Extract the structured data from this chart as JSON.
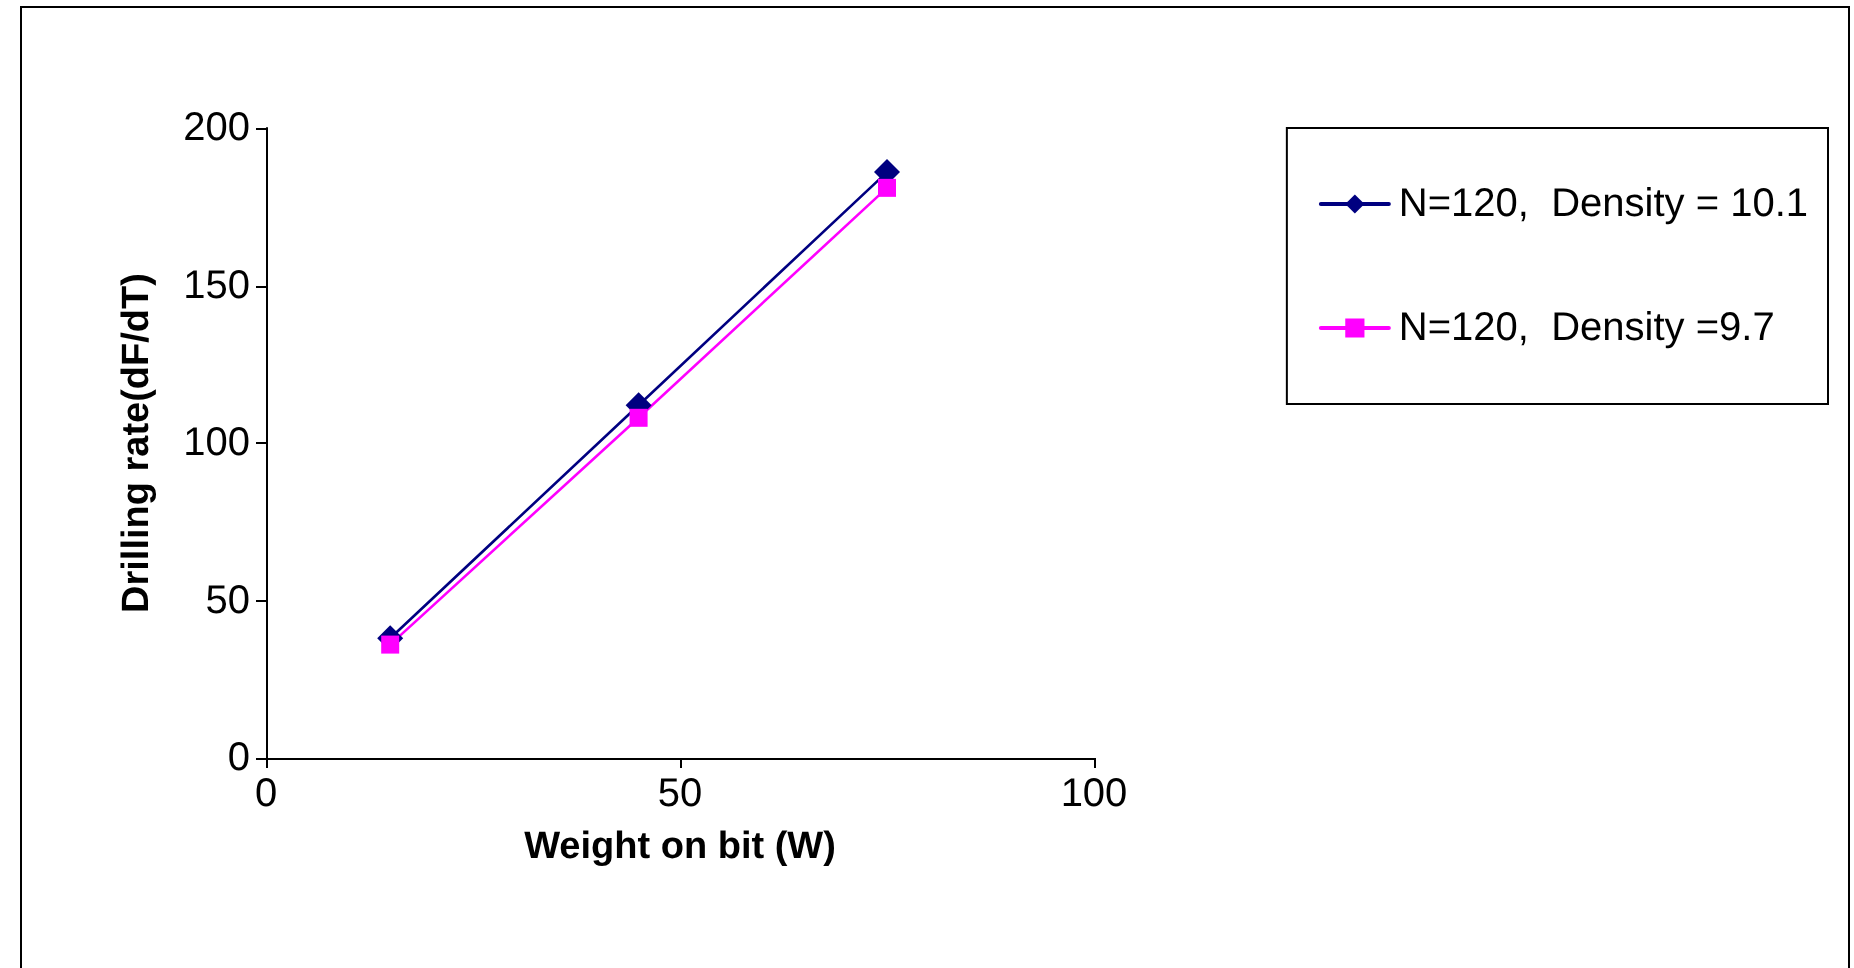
{
  "chart_data": {
    "type": "line",
    "xlabel": "Weight on bit (W)",
    "ylabel": "Drilling rate(dF/dT)",
    "xlim": [
      0,
      100
    ],
    "xticks": [
      0,
      50,
      100
    ],
    "ylim": [
      0,
      200
    ],
    "yticks": [
      0,
      50,
      100,
      150,
      200
    ],
    "grid": false,
    "legend": "top right",
    "line_style": "solid",
    "series": [
      {
        "name": "N=120,  Density = 10.1",
        "color": "#000080",
        "marker": "diamond",
        "x": [
          15,
          45,
          75
        ],
        "values": [
          38,
          112,
          186
        ]
      },
      {
        "name": "N=120,  Density =9.7",
        "color": "#ff00ff",
        "marker": "square",
        "x": [
          15,
          45,
          75
        ],
        "values": [
          36,
          108,
          181
        ]
      }
    ]
  }
}
